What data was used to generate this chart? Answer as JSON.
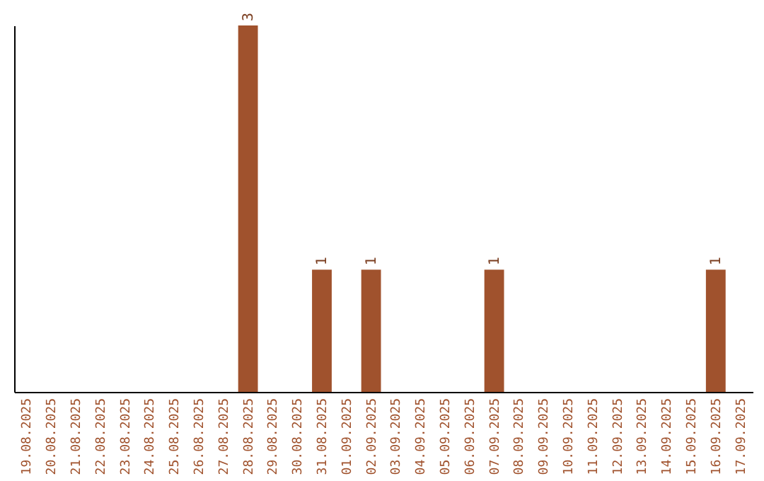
{
  "chart_data": {
    "type": "bar",
    "categories": [
      "19.08.2025",
      "20.08.2025",
      "21.08.2025",
      "22.08.2025",
      "23.08.2025",
      "24.08.2025",
      "25.08.2025",
      "26.08.2025",
      "27.08.2025",
      "28.08.2025",
      "29.08.2025",
      "30.08.2025",
      "31.08.2025",
      "01.09.2025",
      "02.09.2025",
      "03.09.2025",
      "04.09.2025",
      "05.09.2025",
      "06.09.2025",
      "07.09.2025",
      "08.09.2025",
      "09.09.2025",
      "10.09.2025",
      "11.09.2025",
      "12.09.2025",
      "13.09.2025",
      "14.09.2025",
      "15.09.2025",
      "16.09.2025",
      "17.09.2025"
    ],
    "values": [
      0,
      0,
      0,
      0,
      0,
      0,
      0,
      0,
      0,
      3,
      0,
      0,
      1,
      0,
      1,
      0,
      0,
      0,
      0,
      1,
      0,
      0,
      0,
      0,
      0,
      0,
      0,
      0,
      1,
      0
    ],
    "value_labels": [
      null,
      null,
      null,
      null,
      null,
      null,
      null,
      null,
      null,
      "3",
      null,
      null,
      "1",
      null,
      "1",
      null,
      null,
      null,
      null,
      "1",
      null,
      null,
      null,
      null,
      null,
      null,
      null,
      null,
      "1",
      null
    ],
    "color": "#a0522d",
    "grid": false,
    "tick_labels": "x"
  }
}
